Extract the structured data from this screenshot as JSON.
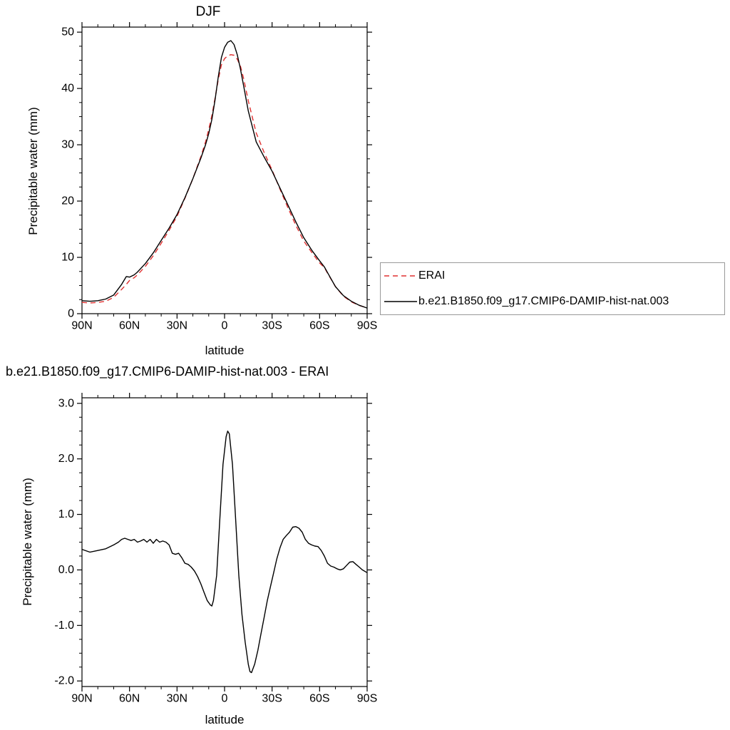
{
  "top_chart": {
    "title": "DJF",
    "xlabel": "latitude",
    "ylabel": "Precipitable water (mm)"
  },
  "bottom_chart": {
    "title": "b.e21.B1850.f09_g17.CMIP6-DAMIP-hist-nat.003 - ERAI",
    "xlabel": "latitude",
    "ylabel": "Precipitable water (mm)"
  },
  "legend": {
    "entries": [
      {
        "label": "ERAI",
        "color": "#e03030",
        "style": "dashed"
      },
      {
        "label": "b.e21.B1850.f09_g17.CMIP6-DAMIP-hist-nat.003",
        "color": "#000000",
        "style": "solid"
      }
    ]
  },
  "chart_data": [
    {
      "id": "djf-zonal-mean-precipitable-water",
      "type": "line",
      "title": "DJF",
      "xlabel": "latitude",
      "ylabel": "Precipitable water (mm)",
      "xlim": [
        90,
        -90
      ],
      "ylim": [
        0,
        50
      ],
      "grid": false,
      "legend_position": "outside-right-bottom",
      "x_ticks": {
        "values": [
          90,
          60,
          30,
          0,
          -30,
          -60,
          -90
        ],
        "labels": [
          "90N",
          "60N",
          "30N",
          "0",
          "30S",
          "60S",
          "90S"
        ]
      },
      "y_ticks": {
        "values": [
          0,
          10,
          20,
          30,
          40,
          50
        ],
        "labels": [
          "0",
          "10",
          "20",
          "30",
          "40",
          "50"
        ]
      },
      "x_minor_step": 10,
      "y_minor_step": 2.5,
      "x": [
        90,
        85,
        80,
        75,
        70,
        65,
        62,
        60,
        57,
        55,
        50,
        45,
        40,
        35,
        30,
        25,
        20,
        15,
        12,
        10,
        8,
        6,
        4,
        2,
        0,
        -2,
        -4,
        -6,
        -8,
        -10,
        -12,
        -15,
        -20,
        -25,
        -30,
        -35,
        -40,
        -45,
        -50,
        -55,
        -60,
        -63,
        -65,
        -70,
        -75,
        -80,
        -85,
        -90
      ],
      "series": [
        {
          "name": "ERAI",
          "color": "#e03030",
          "line_style": "dashed",
          "values": [
            2.0,
            1.9,
            2.0,
            2.2,
            2.9,
            4.3,
            5.2,
            5.9,
            6.4,
            6.9,
            8.4,
            10.3,
            12.5,
            14.8,
            17.3,
            20.5,
            24.0,
            27.9,
            30.5,
            32.7,
            35.2,
            38.3,
            41.5,
            44.2,
            45.3,
            45.8,
            46.0,
            45.9,
            45.2,
            44.0,
            41.8,
            37.8,
            32.1,
            28.6,
            25.5,
            22.1,
            18.8,
            15.7,
            12.9,
            10.9,
            9.0,
            8.2,
            7.2,
            4.8,
            3.1,
            2.1,
            1.45,
            1.05
          ]
        },
        {
          "name": "b.e21.B1850.f09_g17.CMIP6-DAMIP-hist-nat.003",
          "color": "#000000",
          "line_style": "solid",
          "values": [
            2.3,
            2.2,
            2.3,
            2.6,
            3.3,
            5.2,
            6.6,
            6.5,
            6.9,
            7.4,
            8.9,
            10.8,
            13.0,
            15.2,
            17.6,
            20.6,
            24.0,
            27.6,
            30.0,
            32.0,
            34.5,
            38.0,
            42.0,
            45.5,
            47.3,
            48.2,
            48.5,
            47.8,
            46.0,
            43.5,
            40.5,
            36.0,
            30.5,
            27.8,
            25.3,
            22.3,
            19.3,
            16.3,
            13.5,
            11.3,
            9.4,
            8.3,
            7.3,
            4.8,
            3.2,
            2.2,
            1.5,
            1.0
          ]
        }
      ]
    },
    {
      "id": "model-minus-erai-difference",
      "type": "line",
      "title": "b.e21.B1850.f09_g17.CMIP6-DAMIP-hist-nat.003 - ERAI",
      "xlabel": "latitude",
      "ylabel": "Precipitable water (mm)",
      "xlim": [
        90,
        -90
      ],
      "ylim": [
        -2.0,
        3.0
      ],
      "grid": false,
      "x_ticks": {
        "values": [
          90,
          60,
          30,
          0,
          -30,
          -60,
          -90
        ],
        "labels": [
          "90N",
          "60N",
          "30N",
          "0",
          "30S",
          "60S",
          "90S"
        ]
      },
      "y_ticks": {
        "values": [
          -2,
          -1,
          0,
          1,
          2,
          3
        ],
        "labels": [
          "-2.0",
          "-1.0",
          "0.0",
          "1.0",
          "2.0",
          "3.0"
        ]
      },
      "x_minor_step": 10,
      "y_minor_step": 0.25,
      "x": [
        90,
        85,
        80,
        75,
        70,
        67,
        65,
        63,
        61,
        59,
        57,
        55,
        53,
        51,
        49,
        47,
        45,
        43,
        41,
        39,
        37,
        35,
        33,
        31,
        29,
        27,
        25,
        23,
        21,
        19,
        17,
        15,
        13,
        11,
        9,
        8,
        7,
        5,
        3,
        1,
        -1,
        -2,
        -3,
        -5,
        -7,
        -9,
        -11,
        -13,
        -15,
        -16,
        -17,
        -19,
        -21,
        -23,
        -25,
        -27,
        -29,
        -31,
        -33,
        -35,
        -37,
        -39,
        -41,
        -43,
        -45,
        -47,
        -49,
        -51,
        -53,
        -55,
        -57,
        -59,
        -61,
        -63,
        -65,
        -67,
        -69,
        -71,
        -73,
        -75,
        -77,
        -79,
        -81,
        -83,
        -85,
        -87,
        -90
      ],
      "series": [
        {
          "name": "b.e21.B1850.f09_g17.CMIP6-DAMIP-hist-nat.003 - ERAI",
          "color": "#000000",
          "line_style": "solid",
          "values": [
            0.37,
            0.32,
            0.35,
            0.38,
            0.45,
            0.5,
            0.55,
            0.57,
            0.55,
            0.53,
            0.55,
            0.5,
            0.52,
            0.55,
            0.5,
            0.55,
            0.48,
            0.55,
            0.5,
            0.52,
            0.5,
            0.45,
            0.3,
            0.28,
            0.3,
            0.22,
            0.12,
            0.1,
            0.05,
            -0.02,
            -0.12,
            -0.25,
            -0.4,
            -0.55,
            -0.63,
            -0.65,
            -0.55,
            -0.1,
            0.9,
            1.9,
            2.4,
            2.5,
            2.45,
            1.9,
            0.9,
            -0.1,
            -0.8,
            -1.3,
            -1.7,
            -1.83,
            -1.85,
            -1.7,
            -1.45,
            -1.15,
            -0.85,
            -0.55,
            -0.3,
            -0.05,
            0.2,
            0.4,
            0.55,
            0.62,
            0.68,
            0.77,
            0.78,
            0.75,
            0.68,
            0.55,
            0.48,
            0.45,
            0.43,
            0.42,
            0.35,
            0.25,
            0.12,
            0.07,
            0.05,
            0.02,
            0.0,
            0.02,
            0.08,
            0.14,
            0.15,
            0.1,
            0.05,
            0.0,
            -0.05
          ]
        }
      ]
    }
  ]
}
